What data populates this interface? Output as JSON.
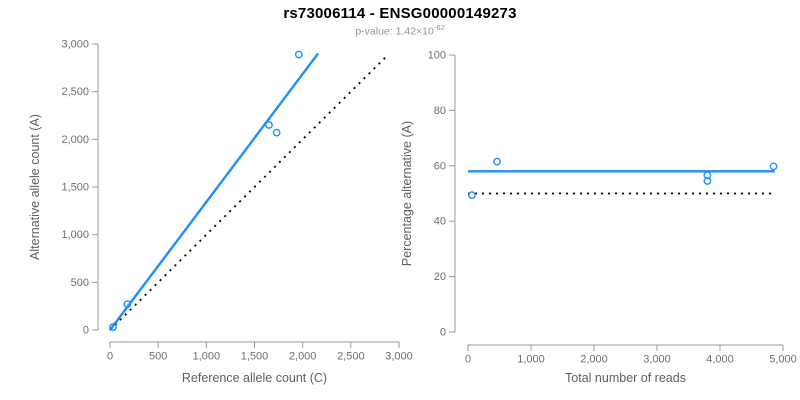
{
  "header": {
    "title": "rs73006114 - ENSG00000149273",
    "subtitle_label": "p-value: ",
    "subtitle_value": "1.42×10",
    "subtitle_exponent": "-62"
  },
  "colors": {
    "accent_blue": "#1E8FFF",
    "dotted_black": "#000000",
    "axis_line": "#9a9a9a",
    "tick_text": "#6e6e6e",
    "axis_title_text": "#5f5f5f",
    "title_text": "#000000",
    "subtitle_text": "#969696"
  },
  "chart_data": [
    {
      "type": "scatter",
      "panel": "left",
      "xlabel": "Reference allele count (C)",
      "ylabel": "Alternative allele count (A)",
      "xlim": [
        0,
        3000
      ],
      "ylim": [
        0,
        3000
      ],
      "x_ticks": [
        0,
        500,
        1000,
        1500,
        2000,
        2500,
        3000
      ],
      "y_ticks": [
        0,
        500,
        1000,
        1500,
        2000,
        2500,
        3000
      ],
      "grid": false,
      "legend": null,
      "point_color": "#1E8FFF",
      "points": [
        [
          32,
          31
        ],
        [
          180,
          270
        ],
        [
          1650,
          2150
        ],
        [
          1730,
          2070
        ],
        [
          1960,
          2890
        ]
      ],
      "lines": [
        {
          "name": "fit-line",
          "style": "solid",
          "color": "#1E8FFF",
          "width": 2.4,
          "from": [
            0,
            0
          ],
          "to": [
            2160,
            2900
          ]
        },
        {
          "name": "identity-line",
          "style": "dotted",
          "color": "#000000",
          "width": 1.8,
          "from": [
            0,
            0
          ],
          "to": [
            2880,
            2880
          ]
        }
      ]
    },
    {
      "type": "scatter",
      "panel": "right",
      "xlabel": "Total number of reads",
      "ylabel": "Percentage alternative (A)",
      "xlim": [
        0,
        5000
      ],
      "ylim": [
        0,
        100
      ],
      "x_ticks": [
        0,
        1000,
        2000,
        3000,
        4000,
        5000
      ],
      "y_ticks": [
        0,
        20,
        40,
        60,
        80,
        100
      ],
      "grid": false,
      "legend": null,
      "point_color": "#1E8FFF",
      "points": [
        [
          63,
          49.4
        ],
        [
          460,
          61.5
        ],
        [
          3800,
          56.6
        ],
        [
          3800,
          54.5
        ],
        [
          4850,
          59.8
        ]
      ],
      "lines": [
        {
          "name": "mean-line",
          "style": "solid",
          "color": "#1E8FFF",
          "width": 2.4,
          "from": [
            0,
            58
          ],
          "to": [
            4870,
            58
          ]
        },
        {
          "name": "null-line",
          "style": "dotted",
          "color": "#000000",
          "width": 1.8,
          "from": [
            0,
            50
          ],
          "to": [
            4870,
            50
          ]
        }
      ]
    }
  ]
}
